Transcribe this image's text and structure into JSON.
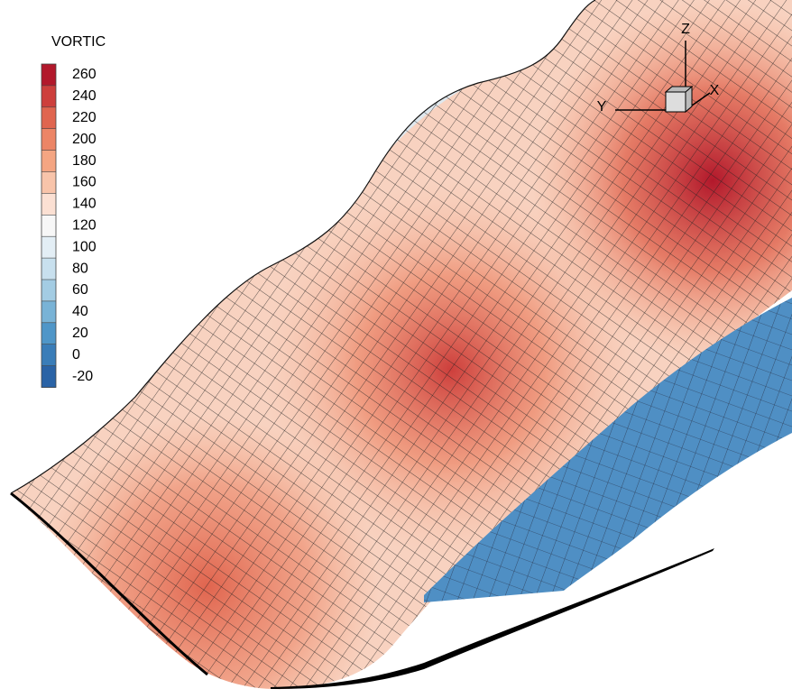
{
  "legend": {
    "title": "VORTIC",
    "levels": [
      260,
      240,
      220,
      200,
      180,
      160,
      140,
      120,
      100,
      80,
      60,
      40,
      20,
      0,
      -20
    ],
    "colors": [
      "#b2182b",
      "#cd3f3c",
      "#e0654f",
      "#ec8566",
      "#f4a582",
      "#f8c4aa",
      "#fbe0d3",
      "#f7f7f7",
      "#e3eef5",
      "#c8e0ee",
      "#a3cce3",
      "#79b3d6",
      "#4f96c8",
      "#3a7db8",
      "#2a63a6"
    ]
  },
  "axes": {
    "x": "X",
    "y": "Y",
    "z": "Z"
  }
}
